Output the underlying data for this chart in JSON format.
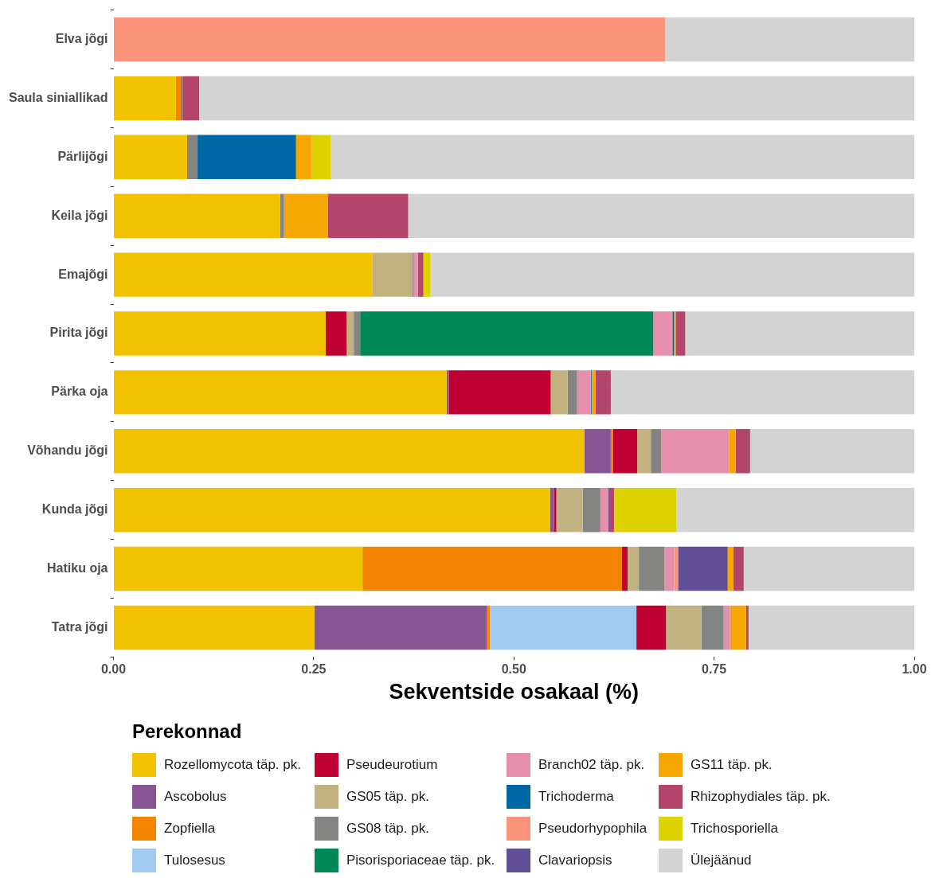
{
  "chart_data": {
    "type": "bar",
    "orientation": "horizontal",
    "stacked": true,
    "xlabel": "Sekventside osakaal (%)",
    "legend_title": "Perekonnad",
    "legend": "bottom",
    "categories": [
      "Elva jõgi",
      "Saula siniallikad",
      "Pärlijõgi",
      "Keila jõgi",
      "Emajõgi",
      "Pirita jõgi",
      "Pärka oja",
      "Võhandu jõgi",
      "Kunda jõgi",
      "Hatiku oja",
      "Tatra jõgi"
    ],
    "xlim": [
      0,
      1
    ],
    "xticks": [
      {
        "value": 0,
        "label": "0.00"
      },
      {
        "value": 0.25,
        "label": "0.25"
      },
      {
        "value": 0.5,
        "label": "0.50"
      },
      {
        "value": 0.75,
        "label": "0.75"
      },
      {
        "value": 1,
        "label": "1.00"
      }
    ],
    "series": [
      {
        "name": "Rozellomycota täp. pk.",
        "color": "#f2c200",
        "values": [
          null,
          0.078,
          0.092,
          0.208,
          0.323,
          0.265,
          0.416,
          0.588,
          0.545,
          0.311,
          0.251
        ]
      },
      {
        "name": "Ascobolus",
        "color": "#875692",
        "values": [
          null,
          null,
          null,
          null,
          null,
          null,
          0.003,
          0.033,
          0.005,
          null,
          0.215
        ]
      },
      {
        "name": "Zopfiella",
        "color": "#f38400",
        "values": [
          null,
          0.006,
          null,
          null,
          null,
          null,
          null,
          0.003,
          null,
          0.324,
          0.004
        ]
      },
      {
        "name": "Tulosesus",
        "color": "#a1caf1",
        "values": [
          null,
          null,
          null,
          null,
          null,
          null,
          null,
          null,
          null,
          null,
          0.183
        ]
      },
      {
        "name": "Pseudeurotium",
        "color": "#be0032",
        "values": [
          null,
          null,
          null,
          null,
          null,
          0.026,
          0.127,
          0.03,
          0.003,
          0.007,
          0.037
        ]
      },
      {
        "name": "GS05 täp. pk.",
        "color": "#c2b280",
        "values": [
          null,
          null,
          null,
          null,
          0.05,
          0.009,
          0.021,
          0.017,
          0.033,
          0.014,
          0.044
        ]
      },
      {
        "name": "GS08 täp. pk.",
        "color": "#848482",
        "values": [
          null,
          0.003,
          0.013,
          0.005,
          0.002,
          0.008,
          0.012,
          0.013,
          0.022,
          0.032,
          0.028
        ]
      },
      {
        "name": "Pisorisporiaceae täp. pk.",
        "color": "#008856",
        "values": [
          null,
          null,
          null,
          null,
          null,
          0.366,
          null,
          null,
          null,
          null,
          null
        ]
      },
      {
        "name": "Branch02 täp. pk.",
        "color": "#e68fac",
        "values": [
          null,
          null,
          null,
          null,
          0.005,
          0.024,
          0.017,
          0.085,
          0.01,
          0.012,
          0.008
        ]
      },
      {
        "name": "Trichoderma",
        "color": "#0067a5",
        "values": [
          null,
          null,
          0.123,
          null,
          null,
          0.002,
          0.001,
          null,
          null,
          null,
          null
        ]
      },
      {
        "name": "Pseudorhypophila",
        "color": "#f99379",
        "values": [
          0.689,
          null,
          null,
          null,
          null,
          null,
          null,
          null,
          null,
          0.005,
          null
        ]
      },
      {
        "name": "Clavariopsis",
        "color": "#604e97",
        "values": [
          null,
          null,
          null,
          null,
          null,
          null,
          null,
          null,
          0.002,
          0.062,
          null
        ]
      },
      {
        "name": "GS11 täp. pk.",
        "color": "#f6a600",
        "values": [
          null,
          null,
          0.019,
          0.055,
          null,
          0.002,
          0.005,
          0.008,
          null,
          0.007,
          0.02
        ]
      },
      {
        "name": "Rhizophydiales täp. pk.",
        "color": "#b3446c",
        "values": [
          null,
          0.02,
          null,
          0.1,
          0.007,
          0.012,
          0.019,
          0.018,
          0.005,
          0.013,
          0.003
        ]
      },
      {
        "name": "Trichosporiella",
        "color": "#dcd300",
        "values": [
          null,
          null,
          0.024,
          null,
          0.009,
          null,
          null,
          null,
          0.078,
          null,
          null
        ]
      },
      {
        "name": "Ülejäänud",
        "color": "#d3d3d3",
        "values": [
          0.311,
          0.893,
          0.729,
          0.632,
          0.604,
          0.286,
          0.379,
          0.205,
          0.297,
          0.213,
          0.207
        ]
      }
    ]
  }
}
